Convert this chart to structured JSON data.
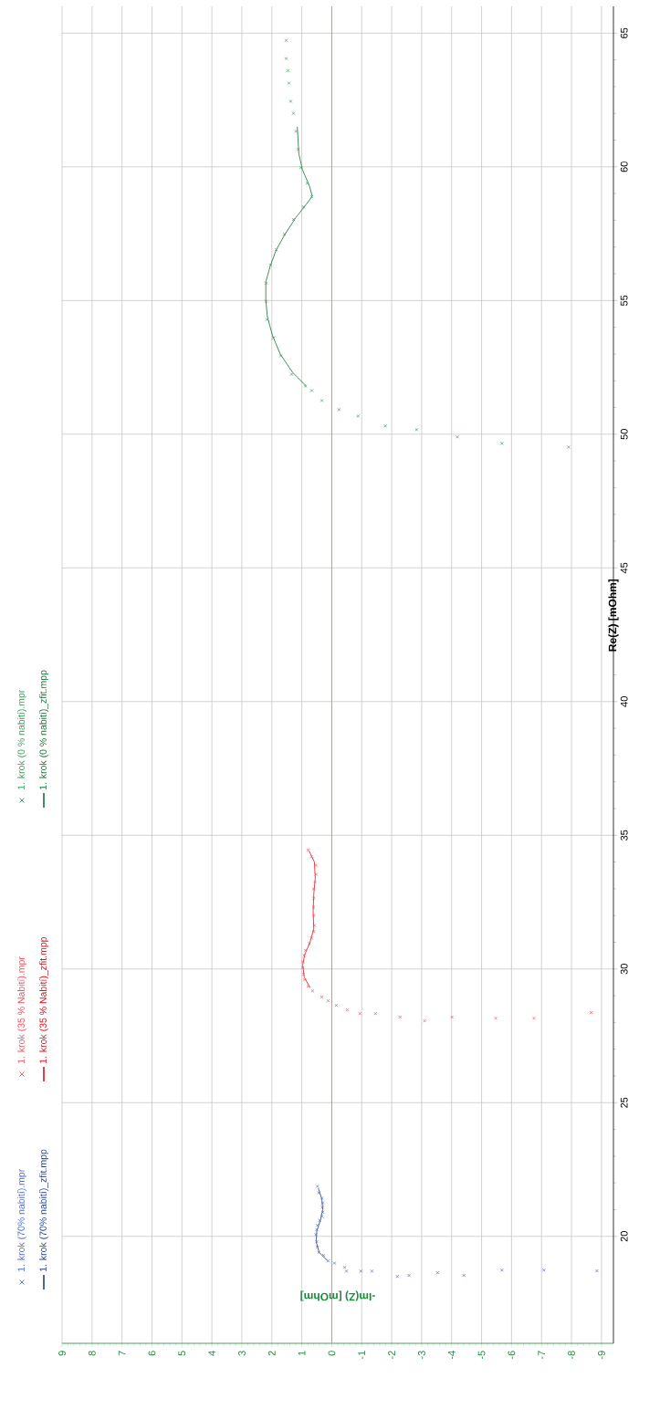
{
  "chart_data": {
    "type": "scatter",
    "xlabel": "-Im(Z) [mOhm]",
    "ylabel": "Re(Z) [mOhm]",
    "xlim": [
      9,
      -9.4
    ],
    "ylim": [
      16,
      66
    ],
    "xticks": [
      9,
      8,
      7,
      6,
      5,
      4,
      3,
      2,
      1,
      0,
      -1,
      -2,
      -3,
      -4,
      -5,
      -6,
      -7,
      -8,
      -9
    ],
    "yticks": [
      20,
      25,
      30,
      35,
      40,
      45,
      50,
      55,
      60,
      65
    ],
    "grid": true,
    "legend": "left",
    "ref_lines": [
      {
        "axis": "x",
        "value": 0,
        "color": "#f7941d"
      }
    ],
    "series": [
      {
        "name": "1. krok (70% nabití).mpr",
        "marker": "cross",
        "color": "#4f6cc4",
        "values": [
          18.71,
          18.74,
          18.74,
          18.54,
          18.64,
          18.54,
          18.5,
          18.7,
          18.7,
          18.7,
          18.84,
          19.0,
          19.08,
          19.29,
          19.4,
          19.6,
          19.8,
          20.07,
          20.25,
          20.41,
          20.6,
          20.75,
          20.9,
          21.09,
          21.25,
          21.43,
          21.63,
          21.87
        ],
        "x": [
          -8.85,
          -7.08,
          -5.68,
          -4.41,
          -3.53,
          -2.58,
          -2.19,
          -1.34,
          -0.97,
          -0.49,
          -0.43,
          -0.09,
          0.12,
          0.27,
          0.43,
          0.48,
          0.5,
          0.53,
          0.5,
          0.48,
          0.4,
          0.33,
          0.3,
          0.31,
          0.3,
          0.33,
          0.43,
          0.48
        ]
      },
      {
        "name": "1. krok (70% nabití)_zfit.mpp",
        "type": "line",
        "marker": "none",
        "color": "#22408f",
        "values": [
          19.1,
          19.4,
          19.8,
          20.2,
          20.6,
          21.0,
          21.4,
          21.8
        ],
        "x": [
          0.15,
          0.42,
          0.52,
          0.5,
          0.38,
          0.3,
          0.33,
          0.45
        ]
      },
      {
        "name": "1. krok (35 % Nabití).mpr",
        "marker": "cross",
        "color": "#f2525c",
        "values": [
          28.37,
          28.16,
          28.16,
          28.2,
          28.06,
          28.2,
          28.33,
          28.33,
          28.47,
          28.64,
          28.81,
          28.95,
          29.18,
          29.35,
          29.6,
          29.8,
          30.05,
          30.27,
          30.5,
          30.7,
          30.95,
          31.16,
          31.4,
          31.63,
          32.0,
          32.31,
          32.65,
          32.99,
          33.25,
          33.54,
          33.88,
          34.2,
          34.45
        ],
        "x": [
          -8.66,
          -6.75,
          -5.47,
          -4.01,
          -3.1,
          -2.28,
          -1.46,
          -0.94,
          -0.52,
          -0.15,
          0.12,
          0.33,
          0.64,
          0.79,
          0.9,
          0.94,
          0.97,
          0.97,
          0.92,
          0.88,
          0.75,
          0.67,
          0.6,
          0.58,
          0.6,
          0.61,
          0.6,
          0.61,
          0.56,
          0.52,
          0.52,
          0.67,
          0.79
        ]
      },
      {
        "name": "1. krok (35 % Nabití)_zfit.mpp",
        "type": "line",
        "marker": "none",
        "color": "#d8121b",
        "values": [
          29.3,
          29.7,
          30.15,
          30.55,
          30.95,
          31.5,
          32.15,
          32.8,
          33.4,
          34.0,
          34.4
        ],
        "x": [
          0.72,
          0.92,
          0.97,
          0.9,
          0.74,
          0.6,
          0.62,
          0.6,
          0.55,
          0.58,
          0.75
        ]
      },
      {
        "name": "1. krok (0 % nabití).mpr",
        "marker": "cross",
        "color": "#3c9a5c",
        "values": [
          49.52,
          49.66,
          49.9,
          50.17,
          50.31,
          50.68,
          50.92,
          51.26,
          51.63,
          51.8,
          52.24,
          52.93,
          53.6,
          54.29,
          54.97,
          55.65,
          56.33,
          56.9,
          57.48,
          58.03,
          58.5,
          58.88,
          59.39,
          59.97,
          60.65,
          61.33,
          62.0,
          62.45,
          63.13,
          63.6,
          64.05,
          64.73
        ],
        "x": [
          -7.9,
          -5.68,
          -4.19,
          -2.83,
          -1.79,
          -0.88,
          -0.24,
          0.33,
          0.67,
          0.88,
          1.34,
          1.7,
          1.95,
          2.16,
          2.19,
          2.19,
          2.04,
          1.85,
          1.58,
          1.28,
          0.94,
          0.67,
          0.82,
          1.03,
          1.12,
          1.19,
          1.28,
          1.37,
          1.43,
          1.46,
          1.52,
          1.52
        ]
      },
      {
        "name": "1. krok (0 % nabití)_zfit.mpp",
        "type": "line",
        "marker": "none",
        "color": "#137333",
        "values": [
          51.8,
          52.3,
          53.0,
          53.7,
          54.4,
          55.0,
          55.7,
          56.3,
          56.9,
          57.5,
          58.1,
          58.6,
          58.9,
          59.3,
          59.9,
          60.5,
          61.5
        ],
        "x": [
          0.85,
          1.3,
          1.72,
          1.98,
          2.15,
          2.2,
          2.2,
          2.05,
          1.85,
          1.55,
          1.2,
          0.85,
          0.65,
          0.75,
          0.98,
          1.1,
          1.15
        ]
      }
    ]
  }
}
